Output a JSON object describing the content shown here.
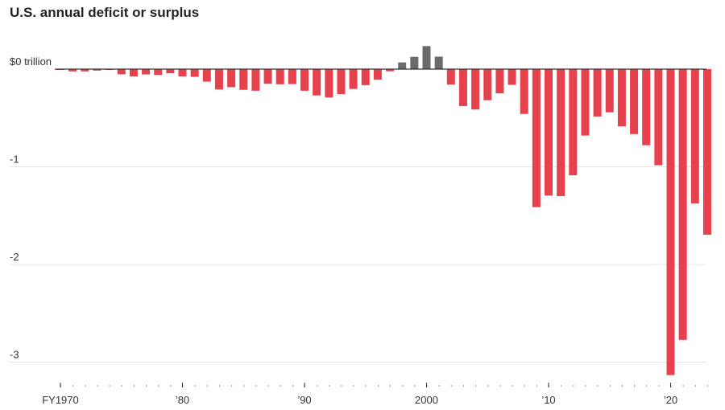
{
  "chart_data": {
    "type": "bar",
    "title": "U.S. annual deficit or surplus",
    "xlabel": "",
    "ylabel": "",
    "ylim": [
      -3.2,
      0.3
    ],
    "x": [
      1970,
      1971,
      1972,
      1973,
      1974,
      1975,
      1976,
      1977,
      1978,
      1979,
      1980,
      1981,
      1982,
      1983,
      1984,
      1985,
      1986,
      1987,
      1988,
      1989,
      1990,
      1991,
      1992,
      1993,
      1994,
      1995,
      1996,
      1997,
      1998,
      1999,
      2000,
      2001,
      2002,
      2003,
      2004,
      2005,
      2006,
      2007,
      2008,
      2009,
      2010,
      2011,
      2012,
      2013,
      2014,
      2015,
      2016,
      2017,
      2018,
      2019,
      2020,
      2021,
      2022,
      2023
    ],
    "values": [
      -0.003,
      -0.023,
      -0.023,
      -0.015,
      -0.006,
      -0.053,
      -0.074,
      -0.054,
      -0.059,
      -0.041,
      -0.074,
      -0.079,
      -0.128,
      -0.208,
      -0.185,
      -0.212,
      -0.221,
      -0.15,
      -0.155,
      -0.153,
      -0.221,
      -0.269,
      -0.29,
      -0.255,
      -0.203,
      -0.164,
      -0.107,
      -0.022,
      0.069,
      0.126,
      0.236,
      0.128,
      -0.158,
      -0.378,
      -0.413,
      -0.318,
      -0.248,
      -0.161,
      -0.459,
      -1.413,
      -1.294,
      -1.3,
      -1.087,
      -0.68,
      -0.485,
      -0.442,
      -0.585,
      -0.665,
      -0.779,
      -0.984,
      -3.132,
      -2.772,
      -1.375,
      -1.695
    ],
    "y_ticks": [
      {
        "value": 0,
        "label": "$0 trillion"
      },
      {
        "value": -1,
        "label": "-1"
      },
      {
        "value": -2,
        "label": "-2"
      },
      {
        "value": -3,
        "label": "-3"
      }
    ],
    "x_tick_labels": [
      {
        "year": 1970,
        "label": "FY1970"
      },
      {
        "year": 1980,
        "label": "’80"
      },
      {
        "year": 1990,
        "label": "’90"
      },
      {
        "year": 2000,
        "label": "2000"
      },
      {
        "year": 2010,
        "label": "’10"
      },
      {
        "year": 2020,
        "label": "’20"
      }
    ],
    "grid": true,
    "legend": "none",
    "colors": {
      "deficit": "#e8414e",
      "surplus": "#6b6b6b"
    }
  }
}
